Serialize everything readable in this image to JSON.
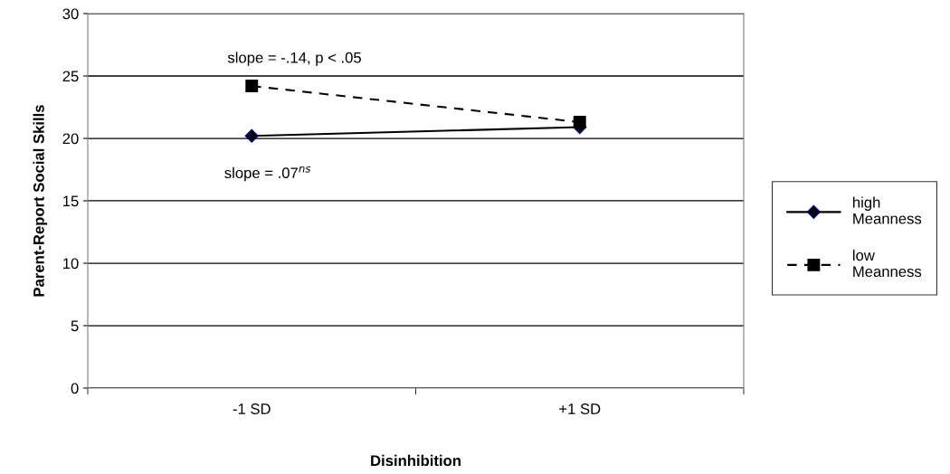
{
  "chart_data": {
    "type": "line",
    "xlabel": "Disinhibition",
    "ylabel": "Parent-Report Social Skills",
    "categories": [
      "-1 SD",
      "+1 SD"
    ],
    "series": [
      {
        "name": "high\nMeanness",
        "color": "#000000",
        "marker": "diamond",
        "line_style": "solid",
        "values": [
          20.2,
          20.9
        ]
      },
      {
        "name": "low\nMeanness",
        "color": "#000000",
        "marker": "square",
        "line_style": "dashed",
        "values": [
          24.2,
          21.3
        ]
      }
    ],
    "ylim": [
      0,
      30
    ],
    "yticks": [
      0,
      5,
      10,
      15,
      20,
      25,
      30
    ],
    "grid": "y",
    "legend": "right",
    "annotations": [
      "slope = -.14, p < .05",
      "slope = .07$^{ns}$"
    ]
  }
}
